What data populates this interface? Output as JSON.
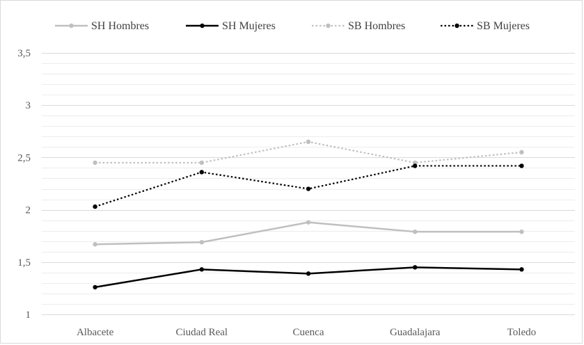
{
  "chart_data": {
    "type": "line",
    "categories": [
      "Albacete",
      "Ciudad Real",
      "Cuenca",
      "Guadalajara",
      "Toledo"
    ],
    "ylim": [
      1,
      3.5
    ],
    "ytick_values": [
      1,
      1.5,
      2,
      2.5,
      3,
      3.5
    ],
    "ytick_labels": [
      "1",
      "1,5",
      "2",
      "2,5",
      "3",
      "3,5"
    ],
    "ygrid_minor_step": 0.1,
    "grid": true,
    "legend_position": "top",
    "series": [
      {
        "name": "SH Hombres",
        "values": [
          1.67,
          1.69,
          1.88,
          1.79,
          1.79
        ],
        "color": "#bfbfbf",
        "dash": "solid"
      },
      {
        "name": "SH Mujeres",
        "values": [
          1.26,
          1.43,
          1.39,
          1.45,
          1.43
        ],
        "color": "#000000",
        "dash": "solid"
      },
      {
        "name": "SB Hombres",
        "values": [
          2.45,
          2.45,
          2.65,
          2.45,
          2.55
        ],
        "color": "#bfbfbf",
        "dash": "dotted"
      },
      {
        "name": "SB Mujeres",
        "values": [
          2.03,
          2.36,
          2.2,
          2.42,
          2.42
        ],
        "color": "#000000",
        "dash": "dotted"
      }
    ]
  }
}
